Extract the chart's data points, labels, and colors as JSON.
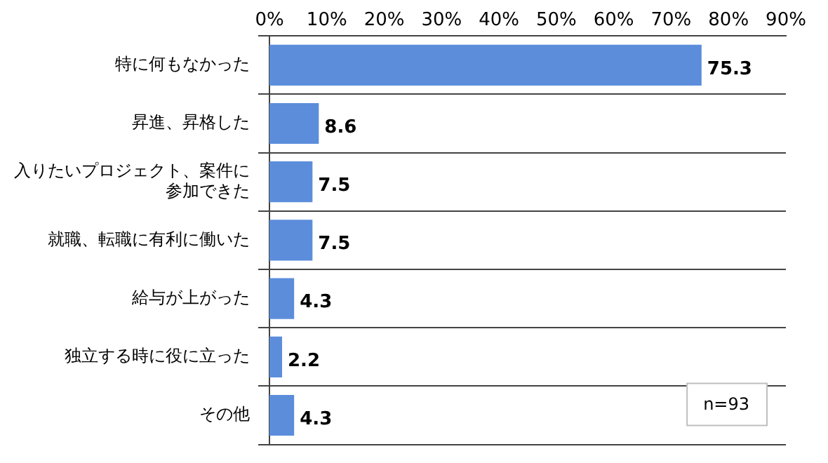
{
  "chart_data": {
    "type": "bar",
    "orientation": "horizontal",
    "categories": [
      "特に何もなかった",
      "昇進、昇格した",
      "入りたいプロジェクト、案件に参加できた",
      "就職、転職に有利に働いた",
      "給与が上がった",
      "独立する時に役に立った",
      "その他"
    ],
    "values": [
      75.3,
      8.6,
      7.5,
      7.5,
      4.3,
      2.2,
      4.3
    ],
    "color": "#5b8ddb",
    "xlim": [
      0,
      90
    ],
    "xticks": [
      {
        "value": 0,
        "label": "0%"
      },
      {
        "value": 10,
        "label": "10%"
      },
      {
        "value": 20,
        "label": "20%"
      },
      {
        "value": 30,
        "label": "30%"
      },
      {
        "value": 40,
        "label": "40%"
      },
      {
        "value": 50,
        "label": "50%"
      },
      {
        "value": 60,
        "label": "60%"
      },
      {
        "value": 70,
        "label": "70%"
      },
      {
        "value": 80,
        "label": "80%"
      },
      {
        "value": 90,
        "label": "90%"
      }
    ],
    "grid": "y",
    "legend": false,
    "data_labels": true,
    "annotations": [
      "n=93"
    ]
  }
}
